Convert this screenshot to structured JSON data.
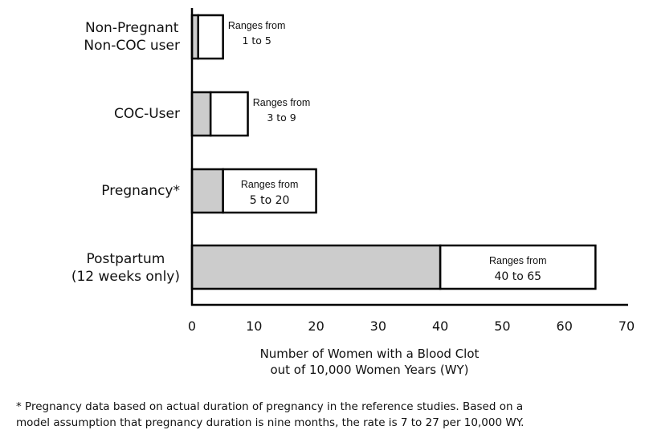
{
  "chart_data": {
    "type": "bar",
    "orientation": "horizontal",
    "stacked_range": true,
    "categories": [
      [
        "Non-Pregnant",
        "Non-COC user"
      ],
      [
        "COC-User"
      ],
      [
        "Pregnancy*"
      ],
      [
        "Postpartum",
        "(12 weeks only)"
      ]
    ],
    "series": [
      {
        "name": "range_low",
        "values": [
          1,
          3,
          5,
          40
        ],
        "color": "#cccccc"
      },
      {
        "name": "range_high",
        "values": [
          5,
          9,
          20,
          65
        ],
        "color": "#ffffff"
      }
    ],
    "annotations": [
      {
        "line1": "Ranges from",
        "line2": "1 to 5",
        "placement": "right-of-bar"
      },
      {
        "line1": "Ranges from",
        "line2": "3 to 9",
        "placement": "right-of-bar"
      },
      {
        "line1": "Ranges from",
        "line2": "5 to 20",
        "placement": "inside-bar"
      },
      {
        "line1": "Ranges from",
        "line2": "40 to 65",
        "placement": "inside-bar"
      }
    ],
    "x_ticks": [
      "0",
      "10",
      "20",
      "30",
      "40",
      "50",
      "60",
      "70"
    ],
    "xlim": [
      0,
      70
    ],
    "xlabel": [
      "Number of Women with a Blood Clot",
      "out of 10,000 Women Years (WY)"
    ],
    "ylabel": "",
    "title": "",
    "grid": false,
    "legend": "none"
  },
  "footnote": [
    "* Pregnancy data based on actual duration of pregnancy in the reference studies. Based on a",
    "model assumption that pregnancy duration is nine months, the rate is 7 to 27 per 10,000 WY."
  ]
}
